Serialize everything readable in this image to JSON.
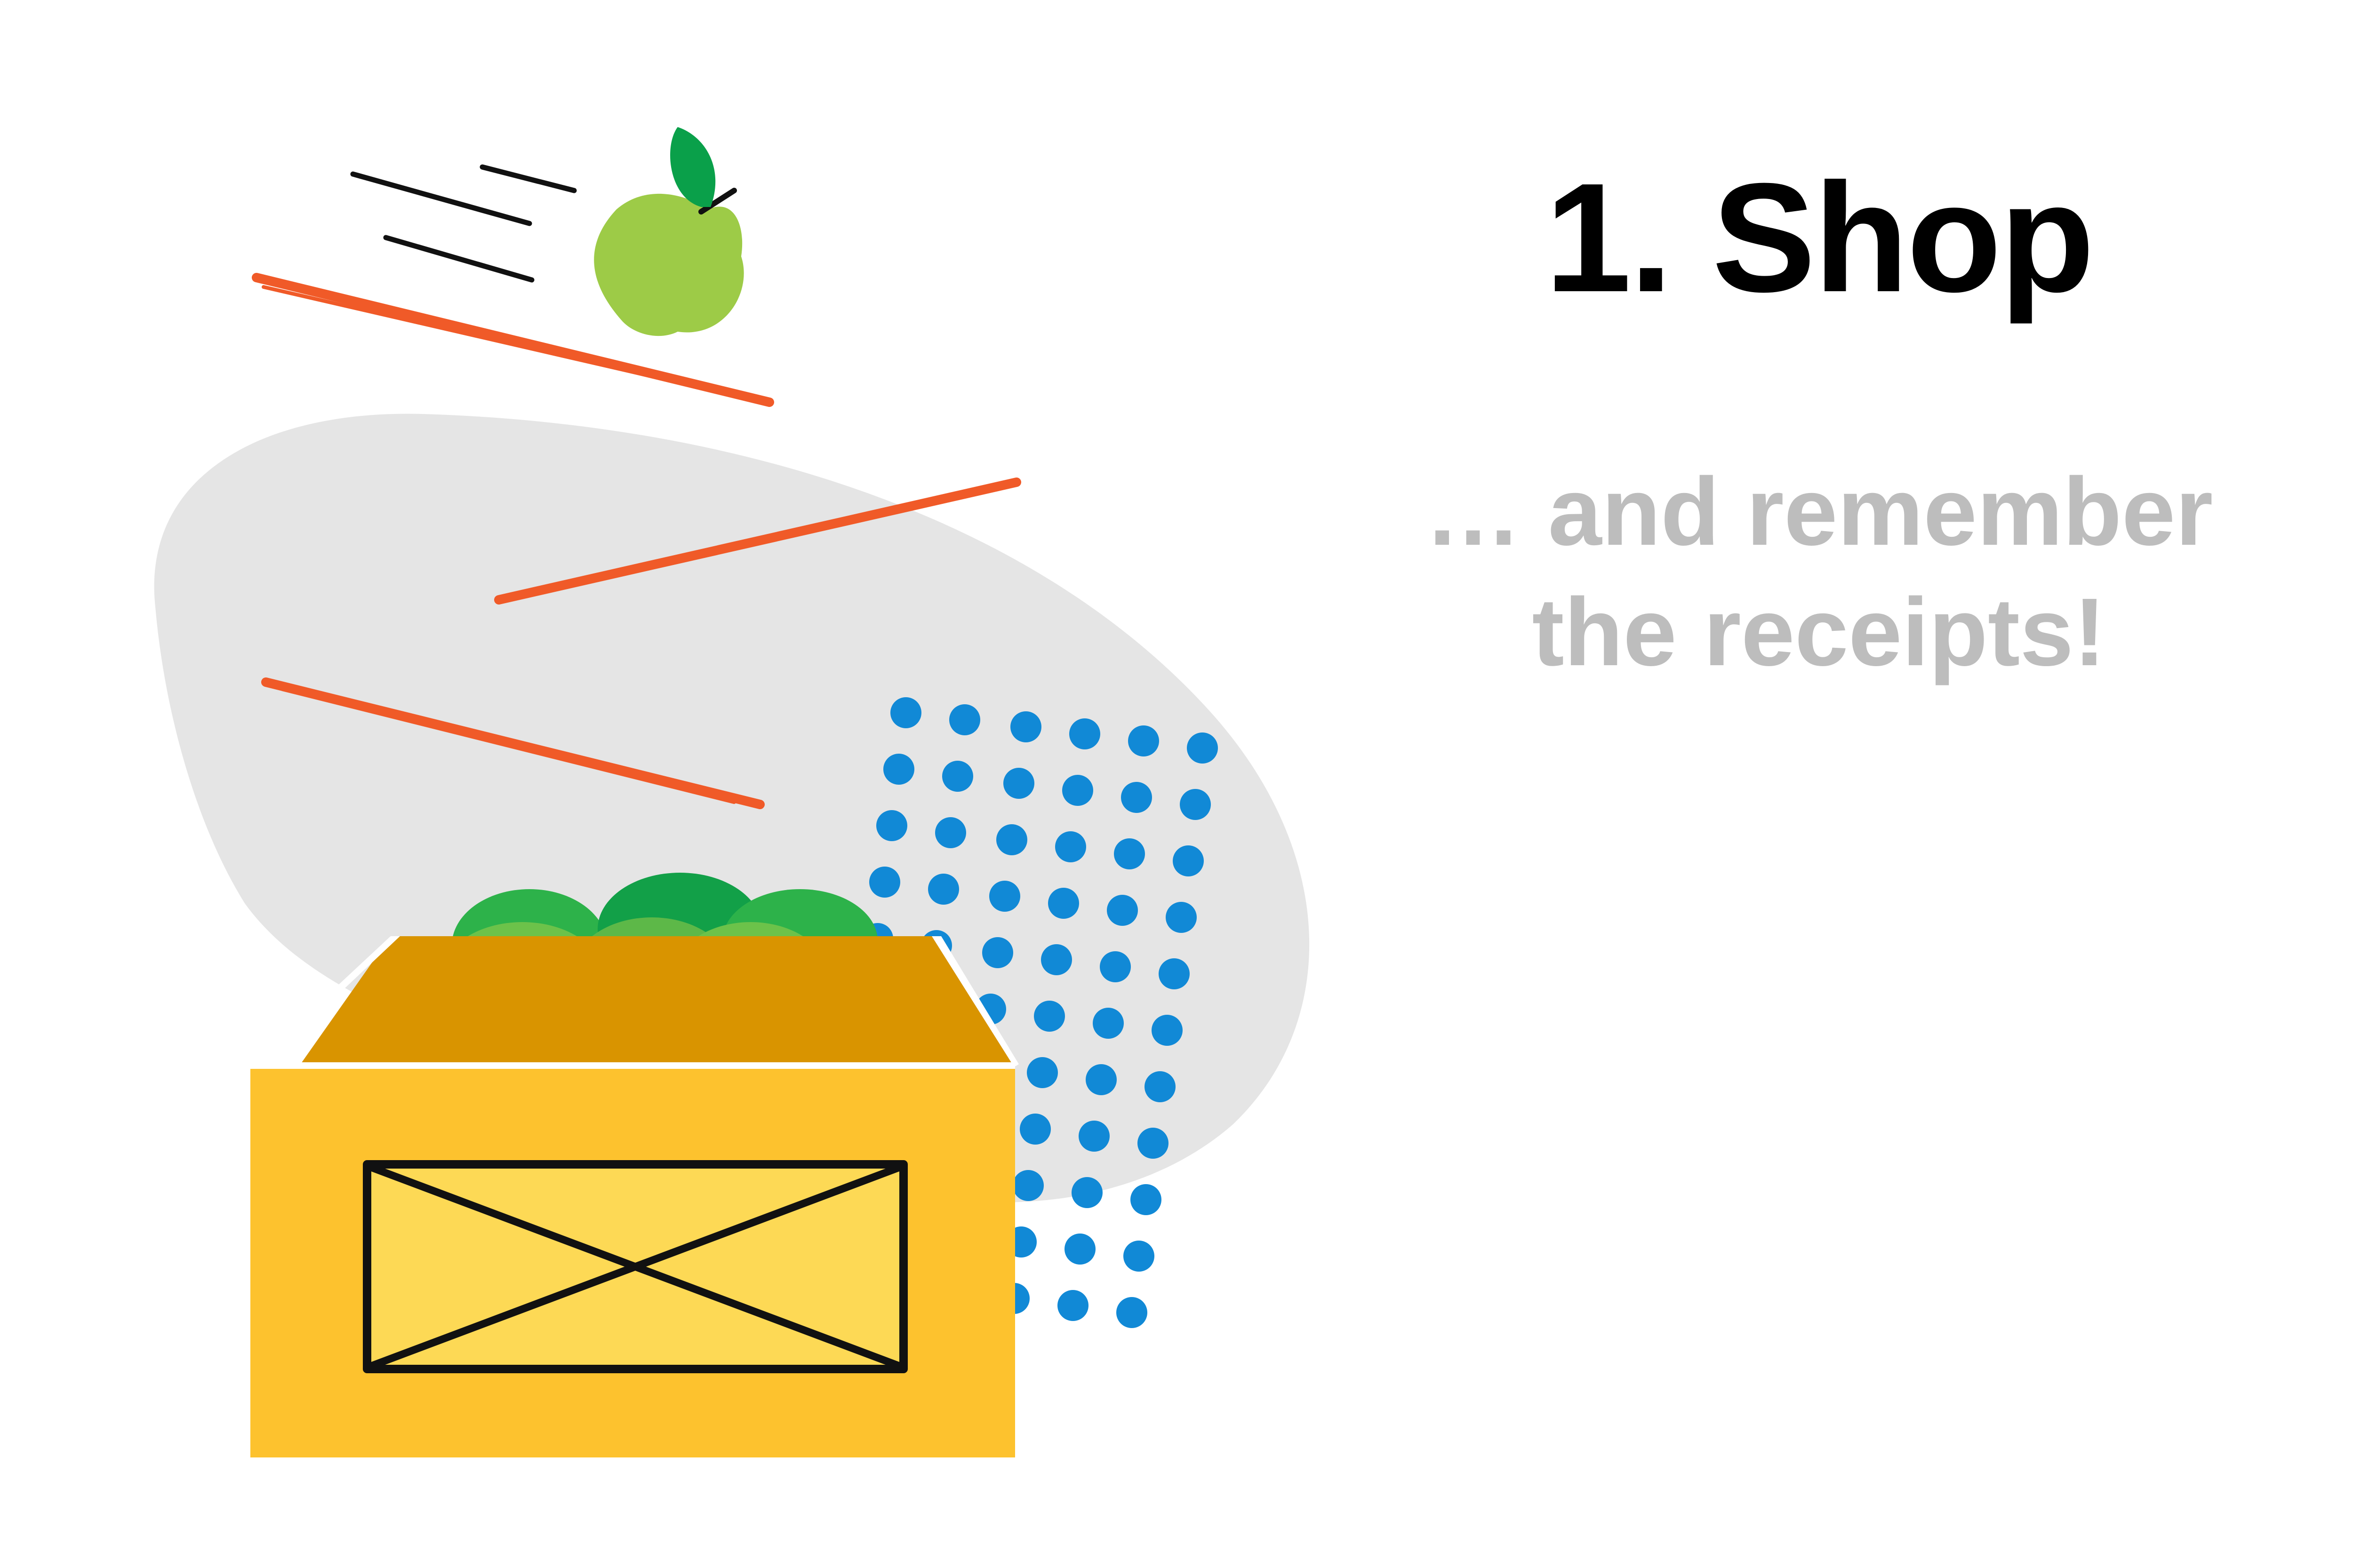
{
  "step": {
    "title": "1. Shop",
    "subtitle_line1": "… and remember",
    "subtitle_line2": "the receipts!"
  },
  "colors": {
    "title": "#000000",
    "subtitle": "#bdbdbd",
    "blob": "#e5e5e5",
    "streak": "#f05a28",
    "dots": "#1189d6",
    "crate_front": "#fdc22e",
    "crate_label": "#fdd955",
    "crate_inner": "#d99400",
    "apple_green": "#9dcb47",
    "leaf_green": "#0aa04a"
  },
  "illustration": {
    "subject": "apple-flying-into-produce-crate"
  }
}
